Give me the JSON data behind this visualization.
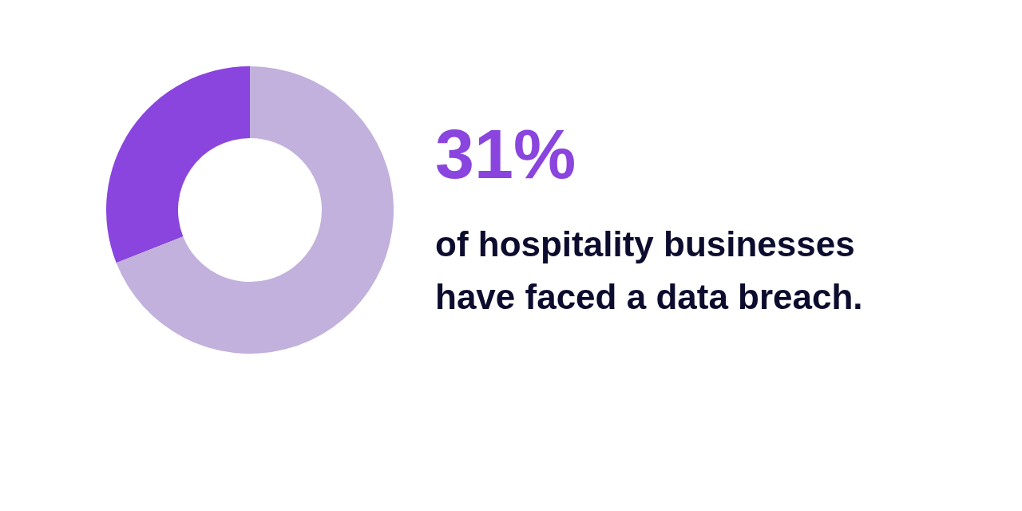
{
  "chart_data": {
    "type": "donut",
    "title": "31%",
    "subtitle": "of hospitality businesses have faced a data breach.",
    "categories": [
      null,
      null
    ],
    "values": [
      31,
      69
    ],
    "colors": [
      "#8a45de",
      "#c2b1dc"
    ]
  }
}
